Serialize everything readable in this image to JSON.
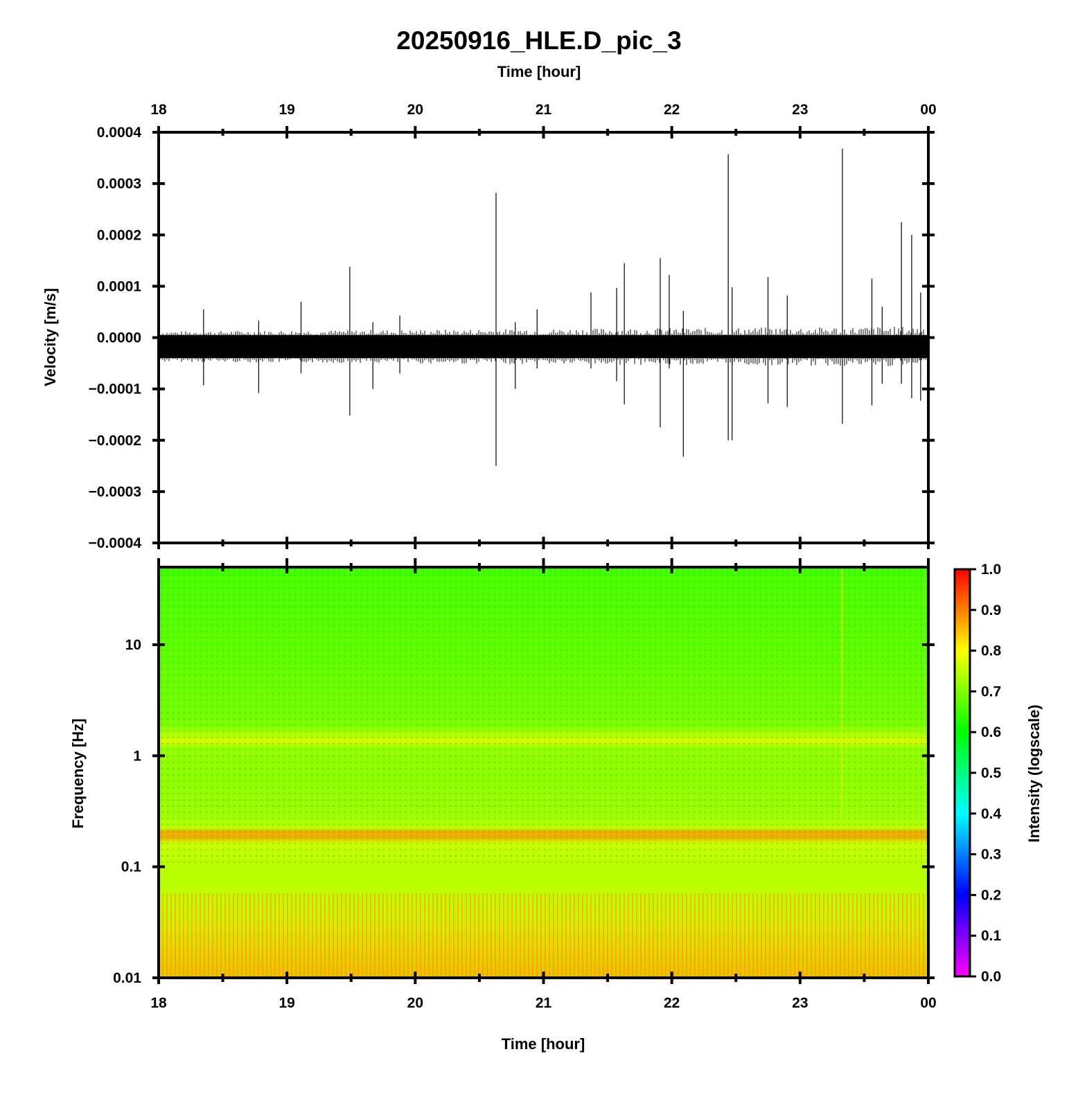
{
  "chart_data": [
    {
      "type": "line",
      "title": "20250916_HLE.D_pic_3",
      "top_axis_label": "Time [hour]",
      "xlabel": "",
      "ylabel": "Velocity [m/s]",
      "x_ticks": [
        "18",
        "19",
        "20",
        "21",
        "22",
        "23",
        "00"
      ],
      "xlim": [
        18,
        24
      ],
      "ylim": [
        -0.0004,
        0.0004
      ],
      "y_ticks": [
        "0.0004",
        "0.0003",
        "0.0002",
        "0.0001",
        "0.0000",
        "−0.0001",
        "−0.0002",
        "−0.0003",
        "−0.0004"
      ],
      "baseline": -2e-05,
      "noise_band": [
        -4e-05,
        5e-06
      ],
      "series": [
        {
          "color": "#000000",
          "spikes": [
            {
              "t": 18.35,
              "max": 5.5e-05,
              "min": -9.3e-05
            },
            {
              "t": 18.78,
              "max": 3.3e-05,
              "min": -0.000108
            },
            {
              "t": 19.11,
              "max": 7e-05,
              "min": -7e-05
            },
            {
              "t": 19.49,
              "max": 0.000138,
              "min": -0.000152
            },
            {
              "t": 19.67,
              "max": 3e-05,
              "min": -0.0001
            },
            {
              "t": 19.88,
              "max": 4.3e-05,
              "min": -7e-05
            },
            {
              "t": 20.63,
              "max": 0.000282,
              "min": -0.00025
            },
            {
              "t": 20.78,
              "max": 3e-05,
              "min": -0.0001
            },
            {
              "t": 20.95,
              "max": 5.5e-05,
              "min": -6e-05
            },
            {
              "t": 21.37,
              "max": 8.8e-05,
              "min": -6e-05
            },
            {
              "t": 21.57,
              "max": 9.7e-05,
              "min": -8.5e-05
            },
            {
              "t": 21.63,
              "max": 0.000145,
              "min": -0.00013
            },
            {
              "t": 21.91,
              "max": 0.000155,
              "min": -0.000175
            },
            {
              "t": 21.98,
              "max": 0.000122,
              "min": -6e-05
            },
            {
              "t": 22.09,
              "max": 5.2e-05,
              "min": -0.000232
            },
            {
              "t": 22.44,
              "max": 0.000357,
              "min": -0.0002
            },
            {
              "t": 22.47,
              "max": 9.8e-05,
              "min": -0.0002
            },
            {
              "t": 22.75,
              "max": 0.000118,
              "min": -0.000128
            },
            {
              "t": 22.9,
              "max": 8.2e-05,
              "min": -0.000135
            },
            {
              "t": 23.33,
              "max": 0.000368,
              "min": -0.000168
            },
            {
              "t": 23.56,
              "max": 0.000115,
              "min": -0.000132
            },
            {
              "t": 23.64,
              "max": 6e-05,
              "min": -9e-05
            },
            {
              "t": 23.79,
              "max": 0.000225,
              "min": -9e-05
            },
            {
              "t": 23.87,
              "max": 0.0002,
              "min": -0.000118
            },
            {
              "t": 23.94,
              "max": 8.8e-05,
              "min": -0.000123
            }
          ]
        }
      ]
    },
    {
      "type": "heatmap",
      "title": "",
      "xlabel": "Time [hour]",
      "ylabel": "Frequency [Hz]",
      "x_ticks": [
        "18",
        "19",
        "20",
        "21",
        "22",
        "23",
        "00"
      ],
      "xlim": [
        18,
        24
      ],
      "y_scale": "log",
      "ylim": [
        0.01,
        50
      ],
      "y_ticks": [
        "10",
        "1",
        "0.1",
        "0.01"
      ],
      "colorbar": {
        "label": "Intensity (logscale)",
        "range": [
          0.0,
          1.0
        ],
        "ticks": [
          "1.0",
          "0.9",
          "0.8",
          "0.7",
          "0.6",
          "0.5",
          "0.4",
          "0.3",
          "0.2",
          "0.1",
          "0.0"
        ],
        "colors": [
          "#ff00ff",
          "#0000ff",
          "#00ffff",
          "#00ff00",
          "#ffff00",
          "#ff0000"
        ]
      },
      "intensity_profile": [
        {
          "freq": 0.01,
          "intensity": 0.86
        },
        {
          "freq": 0.02,
          "intensity": 0.82
        },
        {
          "freq": 0.05,
          "intensity": 0.79
        },
        {
          "freq": 0.1,
          "intensity": 0.77
        },
        {
          "freq": 0.15,
          "intensity": 0.79
        },
        {
          "freq": 0.2,
          "intensity": 0.9
        },
        {
          "freq": 0.25,
          "intensity": 0.77
        },
        {
          "freq": 0.35,
          "intensity": 0.73
        },
        {
          "freq": 0.6,
          "intensity": 0.71
        },
        {
          "freq": 1.0,
          "intensity": 0.7
        },
        {
          "freq": 1.3,
          "intensity": 0.77
        },
        {
          "freq": 1.6,
          "intensity": 0.69
        },
        {
          "freq": 3.0,
          "intensity": 0.66
        },
        {
          "freq": 10.0,
          "intensity": 0.64
        },
        {
          "freq": 30.0,
          "intensity": 0.62
        },
        {
          "freq": 50.0,
          "intensity": 0.6
        }
      ],
      "event_streak": {
        "t": 23.33,
        "intensity": 0.72
      }
    }
  ]
}
